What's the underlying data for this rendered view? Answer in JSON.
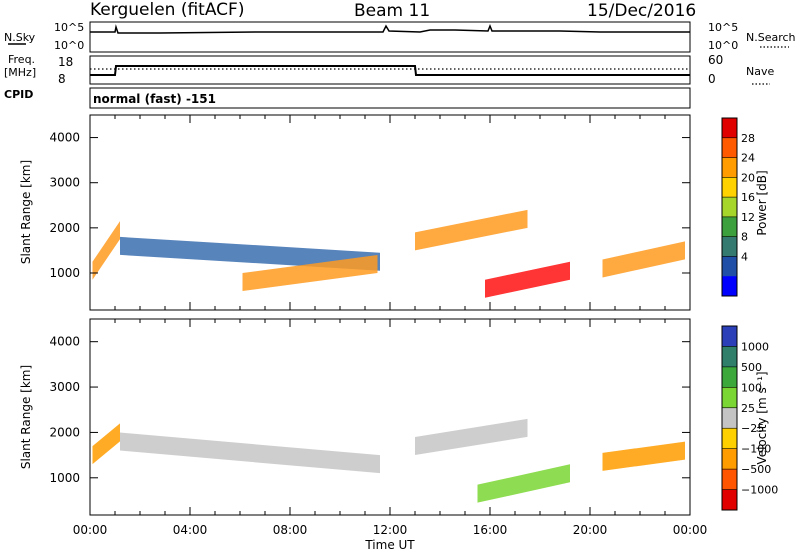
{
  "header": {
    "station": "Kerguelen (fitACF)",
    "beam": "Beam 11",
    "date": "15/Dec/2016"
  },
  "noise_panel": {
    "left_label": "N.Sky",
    "right_label": "N.Search",
    "left_ticks": [
      "10^5",
      "10^0"
    ],
    "right_ticks": [
      "10^5",
      "10^0"
    ]
  },
  "freq_panel": {
    "left_label_line1": "Freq.",
    "left_label_line2": "[MHz]",
    "right_label": "Nave",
    "left_ticks": [
      "18",
      "8"
    ],
    "right_ticks": [
      "60",
      "0"
    ],
    "cpid_label": "CPID",
    "cpid_text": "normal (fast) -151"
  },
  "chart_data": [
    {
      "type": "heatmap",
      "title": "",
      "ylabel": "Slant Range [km]",
      "xlabel": "",
      "xlim": [
        "00:00",
        "00:00"
      ],
      "ylim": [
        180,
        4500
      ],
      "y_ticks": [
        1000,
        2000,
        3000,
        4000
      ],
      "colorbar_label": "Power [dB]",
      "colorbar_ticks": [
        "28",
        "24",
        "20",
        "16",
        "12",
        "8",
        "4"
      ],
      "colorbar_colors": [
        "#e00000",
        "#ff5a00",
        "#ff9c00",
        "#ffd200",
        "#a7d62a",
        "#3ca03c",
        "#357a70",
        "#1f4fa6",
        "#0000ff"
      ],
      "regions": [
        {
          "t0": 0.1,
          "t1": 1.2,
          "r0": 1050,
          "r1": 1950,
          "level": "high"
        },
        {
          "t0": 1.2,
          "t1": 11.6,
          "r0": 1600,
          "r1": 1250,
          "level": "low"
        },
        {
          "t0": 6.1,
          "t1": 11.5,
          "r0": 800,
          "r1": 1200,
          "level": "high"
        },
        {
          "t0": 13.0,
          "t1": 17.5,
          "r0": 1700,
          "r1": 2200,
          "level": "high"
        },
        {
          "t0": 15.8,
          "t1": 19.2,
          "r0": 650,
          "r1": 1050,
          "level": "max"
        },
        {
          "t0": 20.5,
          "t1": 23.8,
          "r0": 1100,
          "r1": 1500,
          "level": "high"
        }
      ]
    },
    {
      "type": "heatmap",
      "title": "",
      "ylabel": "Slant Range [km]",
      "xlabel": "Time UT",
      "x_ticks": [
        "00:00",
        "04:00",
        "08:00",
        "12:00",
        "16:00",
        "20:00",
        "00:00"
      ],
      "ylim": [
        180,
        4500
      ],
      "y_ticks": [
        1000,
        2000,
        3000,
        4000
      ],
      "colorbar_label": "Velocity [m s⁻¹]",
      "colorbar_ticks": [
        "1000",
        "500",
        "100",
        "25",
        "−25",
        "−100",
        "−500",
        "−1000"
      ],
      "colorbar_colors": [
        "#2a3fb8",
        "#2f7f6a",
        "#3ca83c",
        "#7ad632",
        "#c4c4c4",
        "#ffd000",
        "#ff9c00",
        "#ff5500",
        "#e00000"
      ],
      "regions": [
        {
          "t0": 0.1,
          "t1": 1.2,
          "r0": 1500,
          "r1": 2000,
          "level": "negative"
        },
        {
          "t0": 1.2,
          "t1": 11.6,
          "r0": 1800,
          "r1": 1300,
          "level": "near-zero"
        },
        {
          "t0": 13.0,
          "t1": 17.5,
          "r0": 1700,
          "r1": 2100,
          "level": "near-zero"
        },
        {
          "t0": 15.5,
          "t1": 19.2,
          "r0": 650,
          "r1": 1100,
          "level": "positive"
        },
        {
          "t0": 20.5,
          "t1": 23.8,
          "r0": 1350,
          "r1": 1600,
          "level": "negative"
        }
      ]
    }
  ]
}
